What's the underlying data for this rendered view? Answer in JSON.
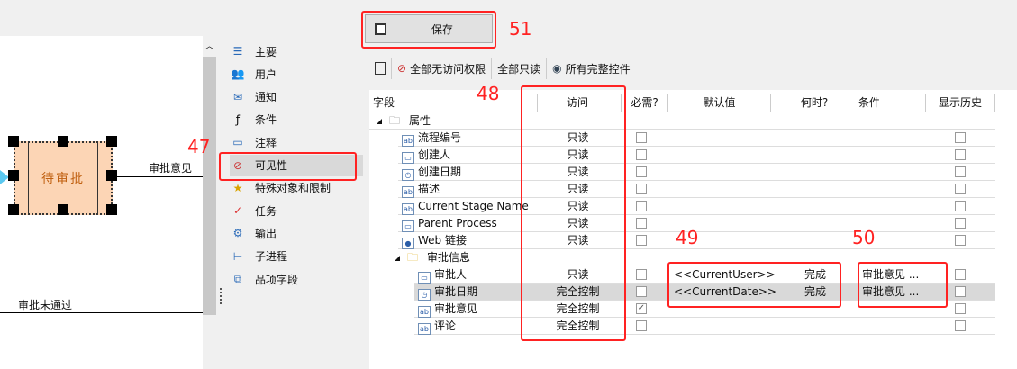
{
  "diagram": {
    "state_label": "待审批",
    "transition1": "审批意见",
    "transition2": "审批未通过",
    "state_fill": "#fcd5b5"
  },
  "sidebar": {
    "items": [
      {
        "label": "主要",
        "icon": "list-icon"
      },
      {
        "label": "用户",
        "icon": "users-icon"
      },
      {
        "label": "通知",
        "icon": "envelope-icon"
      },
      {
        "label": "条件",
        "icon": "function-icon"
      },
      {
        "label": "注释",
        "icon": "comment-icon"
      },
      {
        "label": "可见性",
        "icon": "eye-slash-icon",
        "selected": true
      },
      {
        "label": "特殊对象和限制",
        "icon": "folder-star-icon"
      },
      {
        "label": "任务",
        "icon": "task-icon"
      },
      {
        "label": "输出",
        "icon": "gear-icon"
      },
      {
        "label": "子进程",
        "icon": "subprocess-icon"
      },
      {
        "label": "品项字段",
        "icon": "item-fields-icon"
      }
    ]
  },
  "save_label": "保存",
  "toolbar": {
    "no_access": "全部无访问权限",
    "read_only": "全部只读",
    "full_control": "所有完整控件"
  },
  "grid": {
    "headers": [
      "字段",
      "访问",
      "必需?",
      "默认值",
      "何时?",
      "条件",
      "显示历史"
    ],
    "groups": [
      {
        "label": "属性",
        "rows": [
          {
            "field": "流程编号",
            "icon": "ab",
            "access": "只读",
            "required": false,
            "default": "",
            "when": "",
            "condition": "",
            "history": false
          },
          {
            "field": "创建人",
            "icon": "folder",
            "access": "只读",
            "required": false,
            "default": "",
            "when": "",
            "condition": "",
            "history": false
          },
          {
            "field": "创建日期",
            "icon": "clock",
            "access": "只读",
            "required": false,
            "default": "",
            "when": "",
            "condition": "",
            "history": false
          },
          {
            "field": "描述",
            "icon": "ab",
            "access": "只读",
            "required": false,
            "default": "",
            "when": "",
            "condition": "",
            "history": false
          },
          {
            "field": "Current Stage Name",
            "icon": "ab",
            "access": "只读",
            "required": false,
            "default": "",
            "when": "",
            "condition": "",
            "history": false
          },
          {
            "field": "Parent Process",
            "icon": "folder",
            "access": "只读",
            "required": false,
            "default": "",
            "when": "",
            "condition": "",
            "history": false
          },
          {
            "field": "Web 链接",
            "icon": "globe",
            "access": "只读",
            "required": false,
            "default": "",
            "when": "",
            "condition": "",
            "history": false
          }
        ]
      },
      {
        "label": "审批信息",
        "rows": [
          {
            "field": "审批人",
            "icon": "folder",
            "access": "只读",
            "required": false,
            "default": "<<CurrentUser>>",
            "when": "完成",
            "condition": "审批意见 ...",
            "history": false
          },
          {
            "field": "审批日期",
            "icon": "clock",
            "access": "完全控制",
            "required": false,
            "default": "<<CurrentDate>>",
            "when": "完成",
            "condition": "审批意见 ...",
            "history": false,
            "selected": true
          },
          {
            "field": "审批意见",
            "icon": "ab",
            "access": "完全控制",
            "required": true,
            "default": "",
            "when": "",
            "condition": "",
            "history": false
          },
          {
            "field": "评论",
            "icon": "ab",
            "access": "完全控制",
            "required": false,
            "default": "",
            "when": "",
            "condition": "",
            "history": false
          }
        ]
      }
    ]
  },
  "annotations": {
    "a47": "47",
    "a48": "48",
    "a49": "49",
    "a50": "50",
    "a51": "51",
    "color": "#ff2222"
  }
}
